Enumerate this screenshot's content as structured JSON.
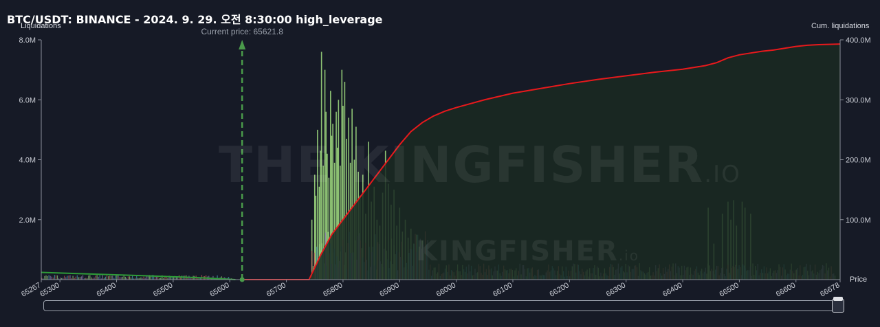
{
  "header": {
    "title": "BTC/USDT: BINANCE - 2024. 9. 29. 오전 8:30:00 high_leverage"
  },
  "watermark": {
    "main": "THE KINGFISHER",
    "suffix": ".IO",
    "secondary": "KINGFISHER",
    "secondary_suffix": ".io"
  },
  "colors": {
    "background": "#161a26",
    "cumulative_line": "#e8191c",
    "cumulative_fill": "#1a2a22",
    "left_tail_line": "#2e9c38",
    "current_price_marker": "#4a9a4a",
    "bar_green": "#9bd67d",
    "bar_teal": "#4aa0b8",
    "bar_red": "#c0605a",
    "bar_purple": "#8e7ab5"
  },
  "chart_data": {
    "type": "bar",
    "title": "BTC/USDT: BINANCE - 2024. 9. 29. 오전 8:30:00 high_leverage",
    "xlabel": "Price",
    "ylabel_left": "Liquidations",
    "ylabel_right": "Cum. liquidations",
    "xlim": [
      65267,
      66678
    ],
    "x_ticks": [
      "65267",
      "65300",
      "65400",
      "65500",
      "65600",
      "65700",
      "65800",
      "65900",
      "66000",
      "66100",
      "66200",
      "66300",
      "66400",
      "66500",
      "66600",
      "66678"
    ],
    "ylim_left": [
      0,
      8000000
    ],
    "left_ticks": [
      "2.0M",
      "4.0M",
      "6.0M",
      "8.0M"
    ],
    "ylim_right": [
      0,
      400000000
    ],
    "right_ticks": [
      "100.0M",
      "200.0M",
      "300.0M",
      "400.0M"
    ],
    "current_price": 65621.8,
    "current_price_label": "Current price: 65621.8",
    "grid": false,
    "series": [
      {
        "kind": "line",
        "x": [
          65267,
          65350,
          65450,
          65550,
          65610
        ],
        "y": [
          12000000,
          9500000,
          6500000,
          3000000,
          0
        ]
      },
      {
        "kind": "line",
        "x": [
          65620,
          65700,
          65740,
          65760,
          65780,
          65800,
          65820,
          65840,
          65860,
          65880,
          65900,
          65920,
          65940,
          65960,
          65980,
          66000,
          66050,
          66100,
          66150,
          66200,
          66250,
          66300,
          66350,
          66400,
          66440,
          66460,
          66480,
          66500,
          66520,
          66540,
          66560,
          66580,
          66600,
          66620,
          66640,
          66678
        ],
        "y": [
          0,
          0,
          0,
          40000000,
          75000000,
          100000000,
          125000000,
          150000000,
          175000000,
          200000000,
          225000000,
          247000000,
          262000000,
          273000000,
          281000000,
          287000000,
          300000000,
          311000000,
          319000000,
          327000000,
          334000000,
          340000000,
          346000000,
          351000000,
          357000000,
          362000000,
          370000000,
          375000000,
          378000000,
          381000000,
          383000000,
          386000000,
          389000000,
          391000000,
          392000000,
          393000000
        ]
      },
      {
        "kind": "bars",
        "x": [
          65745,
          65750,
          65752,
          65755,
          65758,
          65760,
          65762,
          65765,
          65768,
          65770,
          65772,
          65775,
          65778,
          65780,
          65782,
          65785,
          65788,
          65790,
          65792,
          65795,
          65798,
          65800,
          65803,
          65806,
          65810,
          65813,
          65816,
          65820,
          65823,
          65827,
          65830,
          65835,
          65840,
          65845,
          65850,
          65855,
          65860,
          65865,
          65870,
          65875,
          65880,
          65885,
          65890,
          65895,
          65900,
          65905,
          65910,
          65915,
          65920,
          65925,
          65930,
          65935,
          65940,
          66445,
          66455,
          66470,
          66480,
          66485,
          66490,
          66495,
          66505,
          66510,
          66520
        ],
        "y": [
          2000000,
          3500000,
          2800000,
          5000000,
          3100000,
          4300000,
          7600000,
          3800000,
          7000000,
          5600000,
          4200000,
          3400000,
          6300000,
          4800000,
          5200000,
          3900000,
          5600000,
          4400000,
          6000000,
          3800000,
          7000000,
          5800000,
          6600000,
          4700000,
          5400000,
          3900000,
          5700000,
          4000000,
          5100000,
          3600000,
          2800000,
          3500000,
          2200000,
          4600000,
          2600000,
          3100000,
          2000000,
          1800000,
          2900000,
          4300000,
          3200000,
          2500000,
          3000000,
          1800000,
          2400000,
          1600000,
          2000000,
          1400000,
          1700000,
          1200000,
          1500000,
          1100000,
          1300000,
          2400000,
          1200000,
          2200000,
          2600000,
          2000000,
          2650000,
          1800000,
          2600000,
          2400000,
          2200000
        ]
      }
    ]
  }
}
